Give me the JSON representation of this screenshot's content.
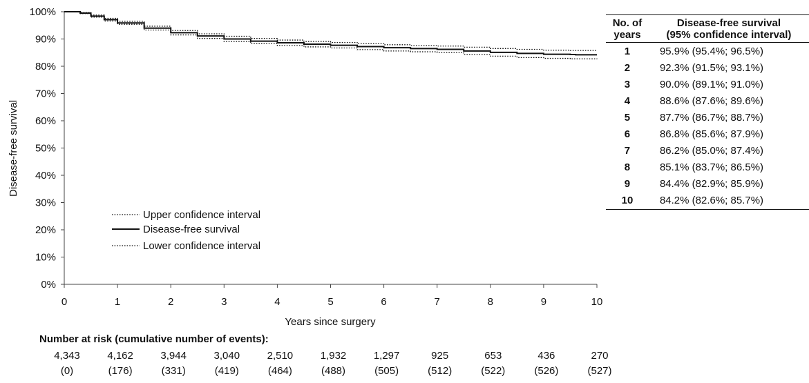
{
  "chart_data": {
    "type": "line",
    "xlabel": "Years since surgery",
    "ylabel": "Disease-free survival",
    "xlim": [
      0,
      10
    ],
    "ylim": [
      0,
      100
    ],
    "x_ticks": [
      "0",
      "1",
      "2",
      "3",
      "4",
      "5",
      "6",
      "7",
      "8",
      "9",
      "10"
    ],
    "y_ticks": [
      "0%",
      "10%",
      "20%",
      "30%",
      "40%",
      "50%",
      "60%",
      "70%",
      "80%",
      "90%",
      "100%"
    ],
    "grid": false,
    "legend_position": "lower-left",
    "series": [
      {
        "name": "Upper confidence interval",
        "style": "dotted",
        "x": [
          0,
          0.3,
          0.5,
          0.75,
          1,
          1.5,
          2,
          2.5,
          3,
          3.5,
          4,
          4.5,
          5,
          5.5,
          6,
          6.5,
          7,
          7.5,
          8,
          8.5,
          9,
          9.5,
          10
        ],
        "y": [
          100,
          99.7,
          98.8,
          97.6,
          96.5,
          94.7,
          93.1,
          91.9,
          91.0,
          90.2,
          89.6,
          89.1,
          88.7,
          88.3,
          87.9,
          87.6,
          87.4,
          87.0,
          86.5,
          86.2,
          85.9,
          85.8,
          85.7
        ]
      },
      {
        "name": "Disease-free survival",
        "style": "solid",
        "x": [
          0,
          0.3,
          0.5,
          0.75,
          1,
          1.5,
          2,
          2.5,
          3,
          3.5,
          4,
          4.5,
          5,
          5.5,
          6,
          6.5,
          7,
          7.5,
          8,
          8.5,
          9,
          9.5,
          9.6,
          10
        ],
        "y": [
          100,
          99.5,
          98.4,
          97.1,
          95.9,
          94.0,
          92.3,
          91.1,
          90.0,
          89.2,
          88.6,
          88.1,
          87.7,
          87.2,
          86.8,
          86.5,
          86.2,
          85.6,
          85.1,
          84.7,
          84.4,
          84.3,
          84.2,
          84.2
        ]
      },
      {
        "name": "Lower confidence interval",
        "style": "dotted",
        "x": [
          0,
          0.3,
          0.5,
          0.75,
          1,
          1.5,
          2,
          2.5,
          3,
          3.5,
          4,
          4.5,
          5,
          5.5,
          6,
          6.5,
          7,
          7.5,
          8,
          8.5,
          9,
          9.5,
          10
        ],
        "y": [
          100,
          99.3,
          98.0,
          96.6,
          95.4,
          93.3,
          91.5,
          90.2,
          89.1,
          88.3,
          87.6,
          87.1,
          86.7,
          86.1,
          85.6,
          85.3,
          85.0,
          84.3,
          83.7,
          83.2,
          82.9,
          82.7,
          82.6
        ]
      }
    ]
  },
  "risk_table": {
    "title": "Number at risk (cumulative number of events):",
    "at_risk": [
      "4,343",
      "4,162",
      "3,944",
      "3,040",
      "2,510",
      "1,932",
      "1,297",
      "925",
      "653",
      "436",
      "270"
    ],
    "events": [
      "(0)",
      "(176)",
      "(331)",
      "(419)",
      "(464)",
      "(488)",
      "(505)",
      "(512)",
      "(522)",
      "(526)",
      "(527)"
    ]
  },
  "survival_table": {
    "header_years": [
      "No. of",
      "years"
    ],
    "header_value": [
      "Disease-free survival",
      "(95% confidence interval)"
    ],
    "rows": [
      {
        "year": "1",
        "value": "95.9% (95.4%; 96.5%)"
      },
      {
        "year": "2",
        "value": "92.3% (91.5%; 93.1%)"
      },
      {
        "year": "3",
        "value": "90.0% (89.1%; 91.0%)"
      },
      {
        "year": "4",
        "value": "88.6% (87.6%; 89.6%)"
      },
      {
        "year": "5",
        "value": "87.7% (86.7%; 88.7%)"
      },
      {
        "year": "6",
        "value": "86.8% (85.6%; 87.9%)"
      },
      {
        "year": "7",
        "value": "86.2% (85.0%; 87.4%)"
      },
      {
        "year": "8",
        "value": "85.1% (83.7%; 86.5%)"
      },
      {
        "year": "9",
        "value": "84.4% (82.9%; 85.9%)"
      },
      {
        "year": "10",
        "value": "84.2% (82.6%; 85.7%)"
      }
    ]
  }
}
